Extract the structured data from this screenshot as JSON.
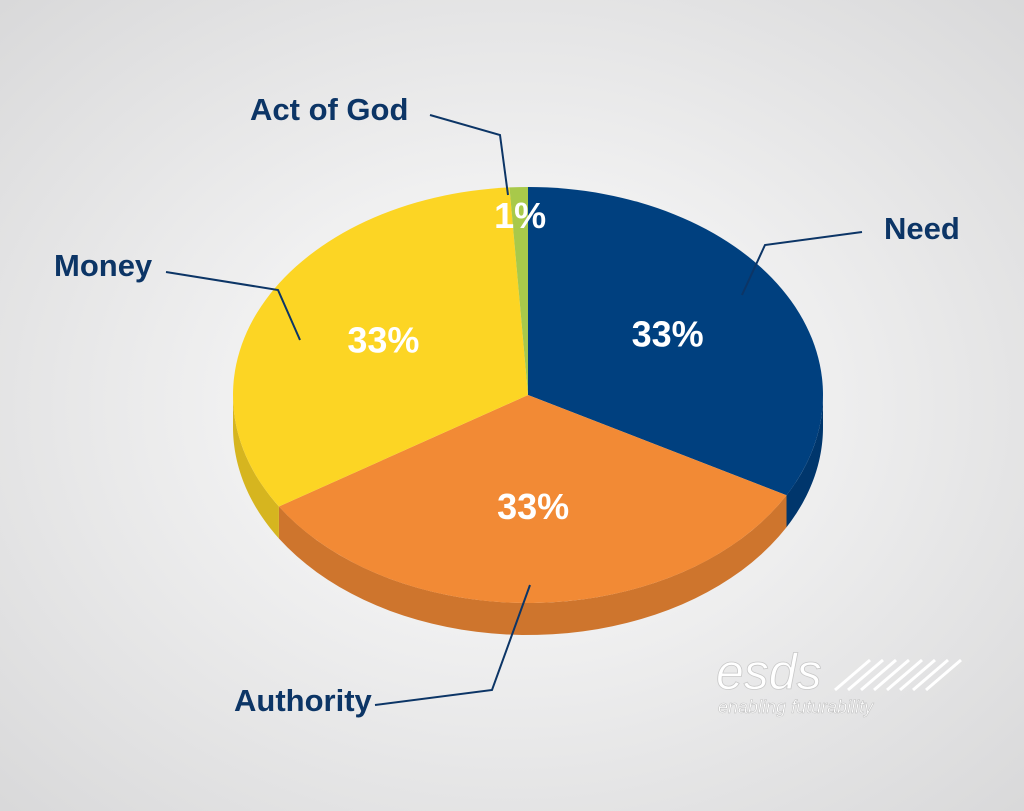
{
  "chart_data": {
    "type": "pie",
    "categories": [
      "Need",
      "Authority",
      "Money",
      "Act of God"
    ],
    "values": [
      33,
      33,
      33,
      1
    ],
    "value_labels": [
      "33%",
      "33%",
      "33%",
      "1%"
    ],
    "colors": [
      "#00407f",
      "#f28a35",
      "#fcd524",
      "#a8c94a"
    ]
  },
  "watermark": {
    "brand": "esds",
    "tagline": "enabling futurability"
  }
}
